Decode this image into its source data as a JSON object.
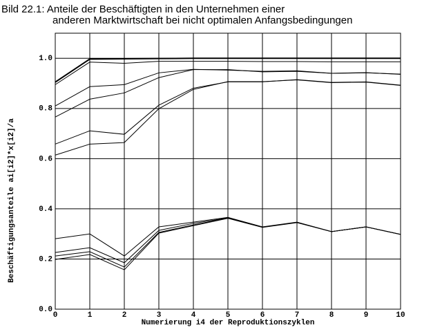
{
  "chart_data": {
    "type": "line",
    "title": [
      "Bild 22.1: Anteile der Beschäftigten in den Unternehmen einer",
      "anderen Marktwirtschaft bei nicht optimalen Anfangsbedingungen"
    ],
    "x_label": "Numerierung i4 der Reproduktionszyklen",
    "y_label": "Beschäftigungsanteile ai[i2]*x[i2]/a",
    "x": [
      0,
      1,
      2,
      3,
      4,
      5,
      6,
      7,
      8,
      9,
      10
    ],
    "xlim": [
      0,
      10
    ],
    "xticks": [
      0,
      1,
      2,
      3,
      4,
      5,
      6,
      7,
      8,
      9,
      10
    ],
    "ylim": [
      0,
      1.1
    ],
    "yticks": [
      {
        "value": 0,
        "label": "0.0"
      },
      0.2,
      0.4,
      0.6,
      0.8,
      {
        "value": 1,
        "label": "1.0"
      }
    ],
    "grid": true,
    "series": [
      {
        "color": "#000000",
        "values": [
          0.905,
          0.997,
          0.998,
          0.999,
          1.0,
          1.0,
          1.0,
          1.0,
          1.0,
          1.0,
          1.0
        ]
      },
      {
        "color": "#000000",
        "values": [
          0.895,
          0.985,
          0.98,
          0.988,
          0.988,
          0.988,
          0.987,
          0.987,
          0.986,
          0.986,
          0.986
        ]
      },
      {
        "color": "#000000",
        "values": [
          0.81,
          0.887,
          0.895,
          0.942,
          0.956,
          0.953,
          0.948,
          0.95,
          0.94,
          0.942,
          0.937
        ]
      },
      {
        "color": "#000000",
        "values": [
          0.766,
          0.837,
          0.862,
          0.923,
          0.955,
          0.955,
          0.946,
          0.948,
          0.94,
          0.943,
          0.936
        ]
      },
      {
        "color": "#000000",
        "values": [
          0.658,
          0.711,
          0.697,
          0.813,
          0.881,
          0.906,
          0.906,
          0.915,
          0.904,
          0.906,
          0.893
        ]
      },
      {
        "color": "#000000",
        "values": [
          0.614,
          0.658,
          0.664,
          0.799,
          0.876,
          0.907,
          0.907,
          0.914,
          0.903,
          0.905,
          0.892
        ]
      },
      {
        "color": "#000000",
        "values": [
          0.281,
          0.3,
          0.212,
          0.328,
          0.347,
          0.366,
          0.328,
          0.347,
          0.309,
          0.328,
          0.298
        ]
      },
      {
        "color": "#000000",
        "values": [
          0.226,
          0.245,
          0.185,
          0.314,
          0.342,
          0.364,
          0.327,
          0.346,
          0.309,
          0.328,
          0.298
        ]
      },
      {
        "color": "#000000",
        "values": [
          0.212,
          0.229,
          0.168,
          0.306,
          0.336,
          0.363,
          0.327,
          0.346,
          0.309,
          0.328,
          0.298
        ]
      },
      {
        "color": "#000000",
        "values": [
          0.198,
          0.218,
          0.157,
          0.303,
          0.333,
          0.362,
          0.326,
          0.345,
          0.309,
          0.328,
          0.298
        ]
      }
    ]
  }
}
